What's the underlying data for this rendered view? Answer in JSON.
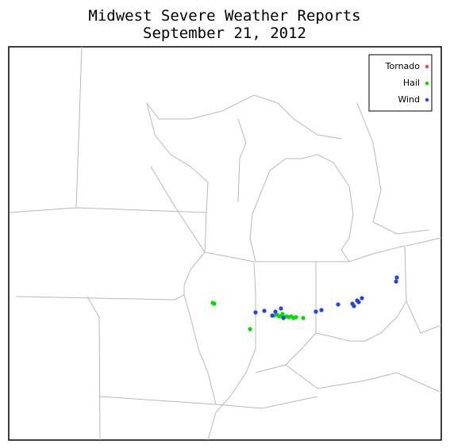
{
  "title": [
    "Midwest Severe Weather Reports",
    "September 21, 2012"
  ],
  "legend": [
    {
      "label": "Tornado",
      "color": "#ff4040"
    },
    {
      "label": "Hail",
      "color": "#00dd00"
    },
    {
      "label": "Wind",
      "color": "#2040ff"
    }
  ]
}
